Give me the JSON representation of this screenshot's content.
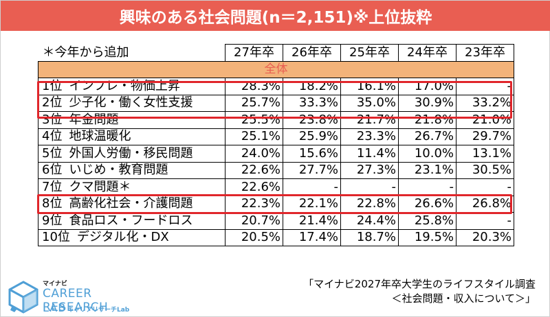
{
  "header": {
    "title": "興味のある社会問題(n＝2,151)※上位抜粋"
  },
  "table": {
    "note": "＊今年から追加",
    "years": [
      "27年卒",
      "26年卒",
      "25年卒",
      "24年卒",
      "23年卒"
    ],
    "group_label": "全体",
    "rows": [
      {
        "rank": "1位",
        "item": "インフレ・物価上昇",
        "values": [
          "28.3%",
          "18.2%",
          "16.1%",
          "17.0%",
          "-"
        ]
      },
      {
        "rank": "2位",
        "item": "少子化・働く女性支援",
        "values": [
          "25.7%",
          "33.3%",
          "35.0%",
          "30.9%",
          "33.2%"
        ]
      },
      {
        "rank": "3位",
        "item": "年金問題",
        "values": [
          "25.5%",
          "23.8%",
          "21.7%",
          "21.8%",
          "21.0%"
        ]
      },
      {
        "rank": "4位",
        "item": "地球温暖化",
        "values": [
          "25.1%",
          "25.9%",
          "23.3%",
          "26.7%",
          "29.7%"
        ]
      },
      {
        "rank": "5位",
        "item": "外国人労働・移民問題",
        "values": [
          "24.0%",
          "15.6%",
          "11.4%",
          "10.0%",
          "13.1%"
        ]
      },
      {
        "rank": "6位",
        "item": "いじめ・教育問題",
        "values": [
          "22.6%",
          "27.7%",
          "27.3%",
          "23.1%",
          "30.5%"
        ]
      },
      {
        "rank": "7位",
        "item": "クマ問題＊",
        "values": [
          "22.6%",
          "-",
          "-",
          "-",
          "-"
        ]
      },
      {
        "rank": "8位",
        "item": "高齢化社会・介護問題",
        "values": [
          "22.3%",
          "22.1%",
          "22.8%",
          "26.6%",
          "26.8%"
        ]
      },
      {
        "rank": "9位",
        "item": "食品ロス・フードロス",
        "values": [
          "20.7%",
          "21.4%",
          "24.4%",
          "25.8%",
          "-"
        ]
      },
      {
        "rank": "10位",
        "item": "デジタル化・DX",
        "values": [
          "20.5%",
          "17.4%",
          "18.7%",
          "19.5%",
          "20.3%"
        ]
      }
    ]
  },
  "logo": {
    "small": "マイナビ",
    "main": "CAREER RESEARCH",
    "lab": "LAB",
    "sub": "キャリアリサーチLab"
  },
  "source": {
    "line1": "「マイナビ2027年卒大学生のライフスタイル調査",
    "line2": "＜社会問題・収入について＞」"
  },
  "colors": {
    "header_bg": "#e95e52",
    "group_bg": "#f3b37a",
    "highlight": "#e0262b",
    "logo_blue": "#4f9fd6"
  }
}
